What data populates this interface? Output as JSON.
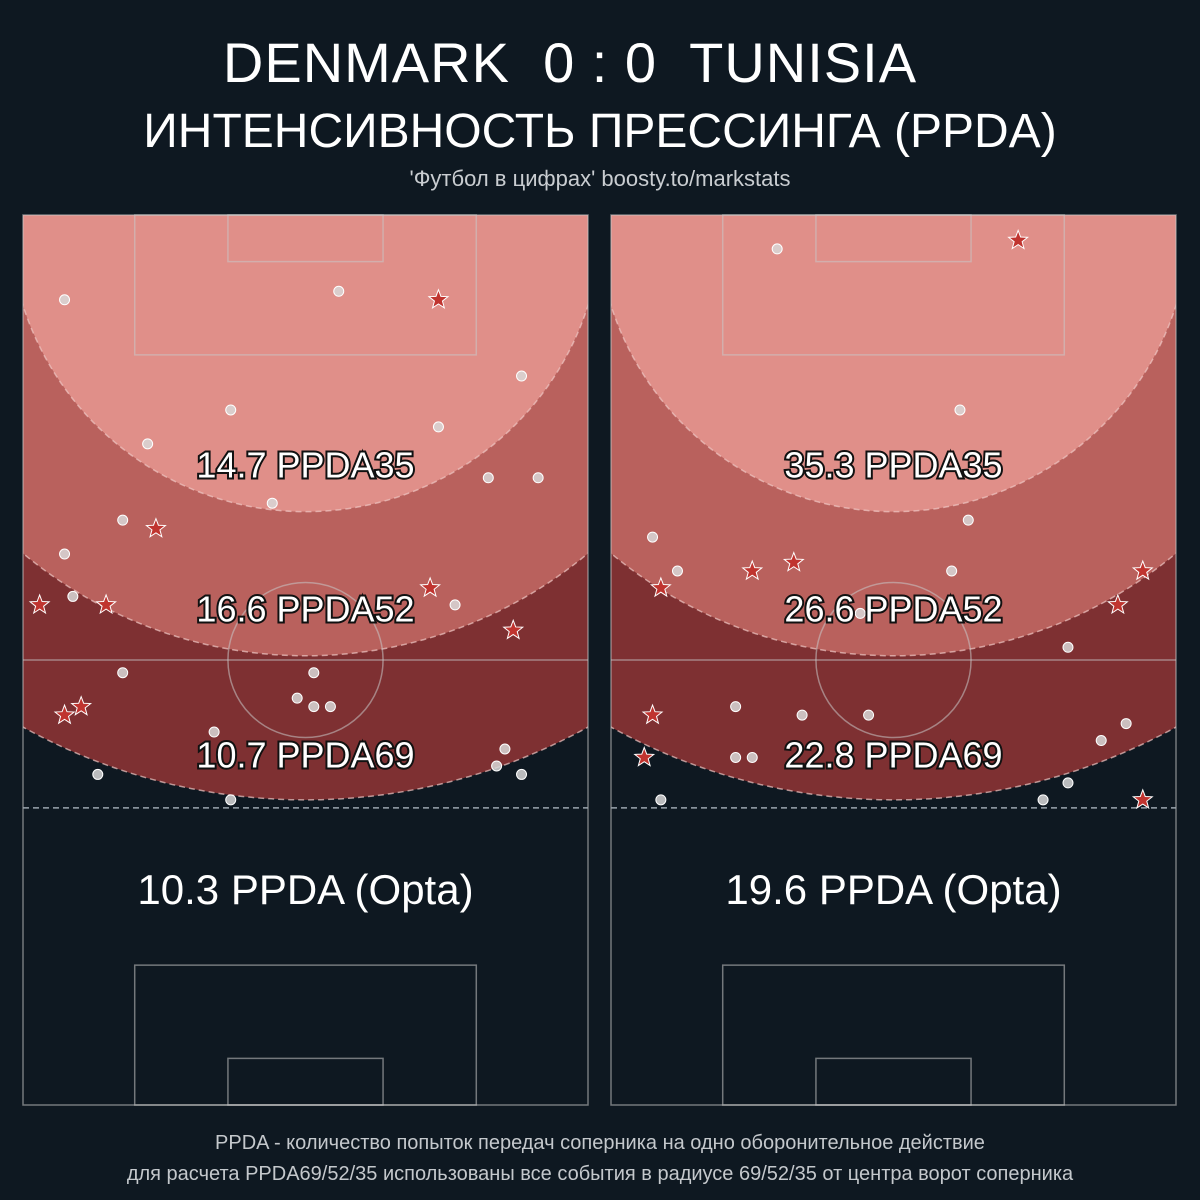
{
  "header": {
    "home_team": "DENMARK",
    "score": "0 : 0",
    "away_team": "TUNISIA",
    "subtitle": "ИНТЕНСИВНОСТЬ ПРЕССИНГА (PPDA)",
    "credit": "'Футбол в цифрах' boosty.to/markstats"
  },
  "colors": {
    "background": "#0e1821",
    "zone35": "#e08f89",
    "zone52": "#b9615d",
    "zone69": "#7e3032",
    "star": "#c0342f",
    "dot": "#d8d8d8"
  },
  "footer": {
    "line1": "PPDA - количество попыток передач соперника на одно оборонительное действие",
    "line2": "для расчета PPDA69/52/35 использованы все события в радиусе 69/52/35 от центра ворот соперника"
  },
  "chart_data": [
    {
      "type": "scatter",
      "team": "DENMARK",
      "labels": {
        "ppda35": "14.7 PPDA35",
        "ppda52": "16.6 PPDA52",
        "ppda69": "10.7 PPDA69",
        "opta": "10.3 PPDA (Opta)"
      },
      "values": {
        "ppda35": 14.7,
        "ppda52": 16.6,
        "ppda69": 10.7,
        "opta": 10.3
      },
      "pitch_x_range": [
        0,
        68
      ],
      "pitch_y_range_from_goal": [
        0,
        105
      ],
      "dots": [
        [
          5,
          10
        ],
        [
          38,
          9
        ],
        [
          25,
          23
        ],
        [
          50,
          25
        ],
        [
          60,
          19
        ],
        [
          15,
          27
        ],
        [
          30,
          34
        ],
        [
          56,
          31
        ],
        [
          62,
          31
        ],
        [
          12,
          36
        ],
        [
          5,
          40
        ],
        [
          6,
          45
        ],
        [
          52,
          46
        ],
        [
          12,
          54
        ],
        [
          35,
          54
        ],
        [
          33,
          57
        ],
        [
          35,
          58
        ],
        [
          37,
          58
        ],
        [
          23,
          61
        ],
        [
          58,
          63
        ],
        [
          57,
          65
        ],
        [
          9,
          66
        ],
        [
          25,
          69
        ],
        [
          60,
          66
        ]
      ],
      "stars": [
        [
          50,
          10
        ],
        [
          16,
          37
        ],
        [
          2,
          46
        ],
        [
          10,
          46
        ],
        [
          49,
          44
        ],
        [
          59,
          49
        ],
        [
          7,
          58
        ],
        [
          5,
          59
        ]
      ]
    },
    {
      "type": "scatter",
      "team": "TUNISIA",
      "labels": {
        "ppda35": "35.3 PPDA35",
        "ppda52": "26.6 PPDA52",
        "ppda69": "22.8 PPDA69",
        "opta": "19.6 PPDA (Opta)"
      },
      "values": {
        "ppda35": 35.3,
        "ppda52": 26.6,
        "ppda69": 22.8,
        "opta": 19.6
      },
      "pitch_x_range": [
        0,
        68
      ],
      "pitch_y_range_from_goal": [
        0,
        105
      ],
      "dots": [
        [
          20,
          4
        ],
        [
          42,
          23
        ],
        [
          43,
          36
        ],
        [
          5,
          38
        ],
        [
          8,
          42
        ],
        [
          41,
          42
        ],
        [
          30,
          47
        ],
        [
          55,
          51
        ],
        [
          15,
          58
        ],
        [
          23,
          59
        ],
        [
          31,
          59
        ],
        [
          62,
          60
        ],
        [
          59,
          62
        ],
        [
          17,
          64
        ],
        [
          6,
          69
        ],
        [
          52,
          69
        ],
        [
          55,
          67
        ],
        [
          15,
          64
        ]
      ],
      "stars": [
        [
          49,
          3
        ],
        [
          6,
          44
        ],
        [
          17,
          42
        ],
        [
          22,
          41
        ],
        [
          64,
          42
        ],
        [
          61,
          46
        ],
        [
          5,
          59
        ],
        [
          4,
          64
        ],
        [
          64,
          69
        ]
      ]
    }
  ]
}
